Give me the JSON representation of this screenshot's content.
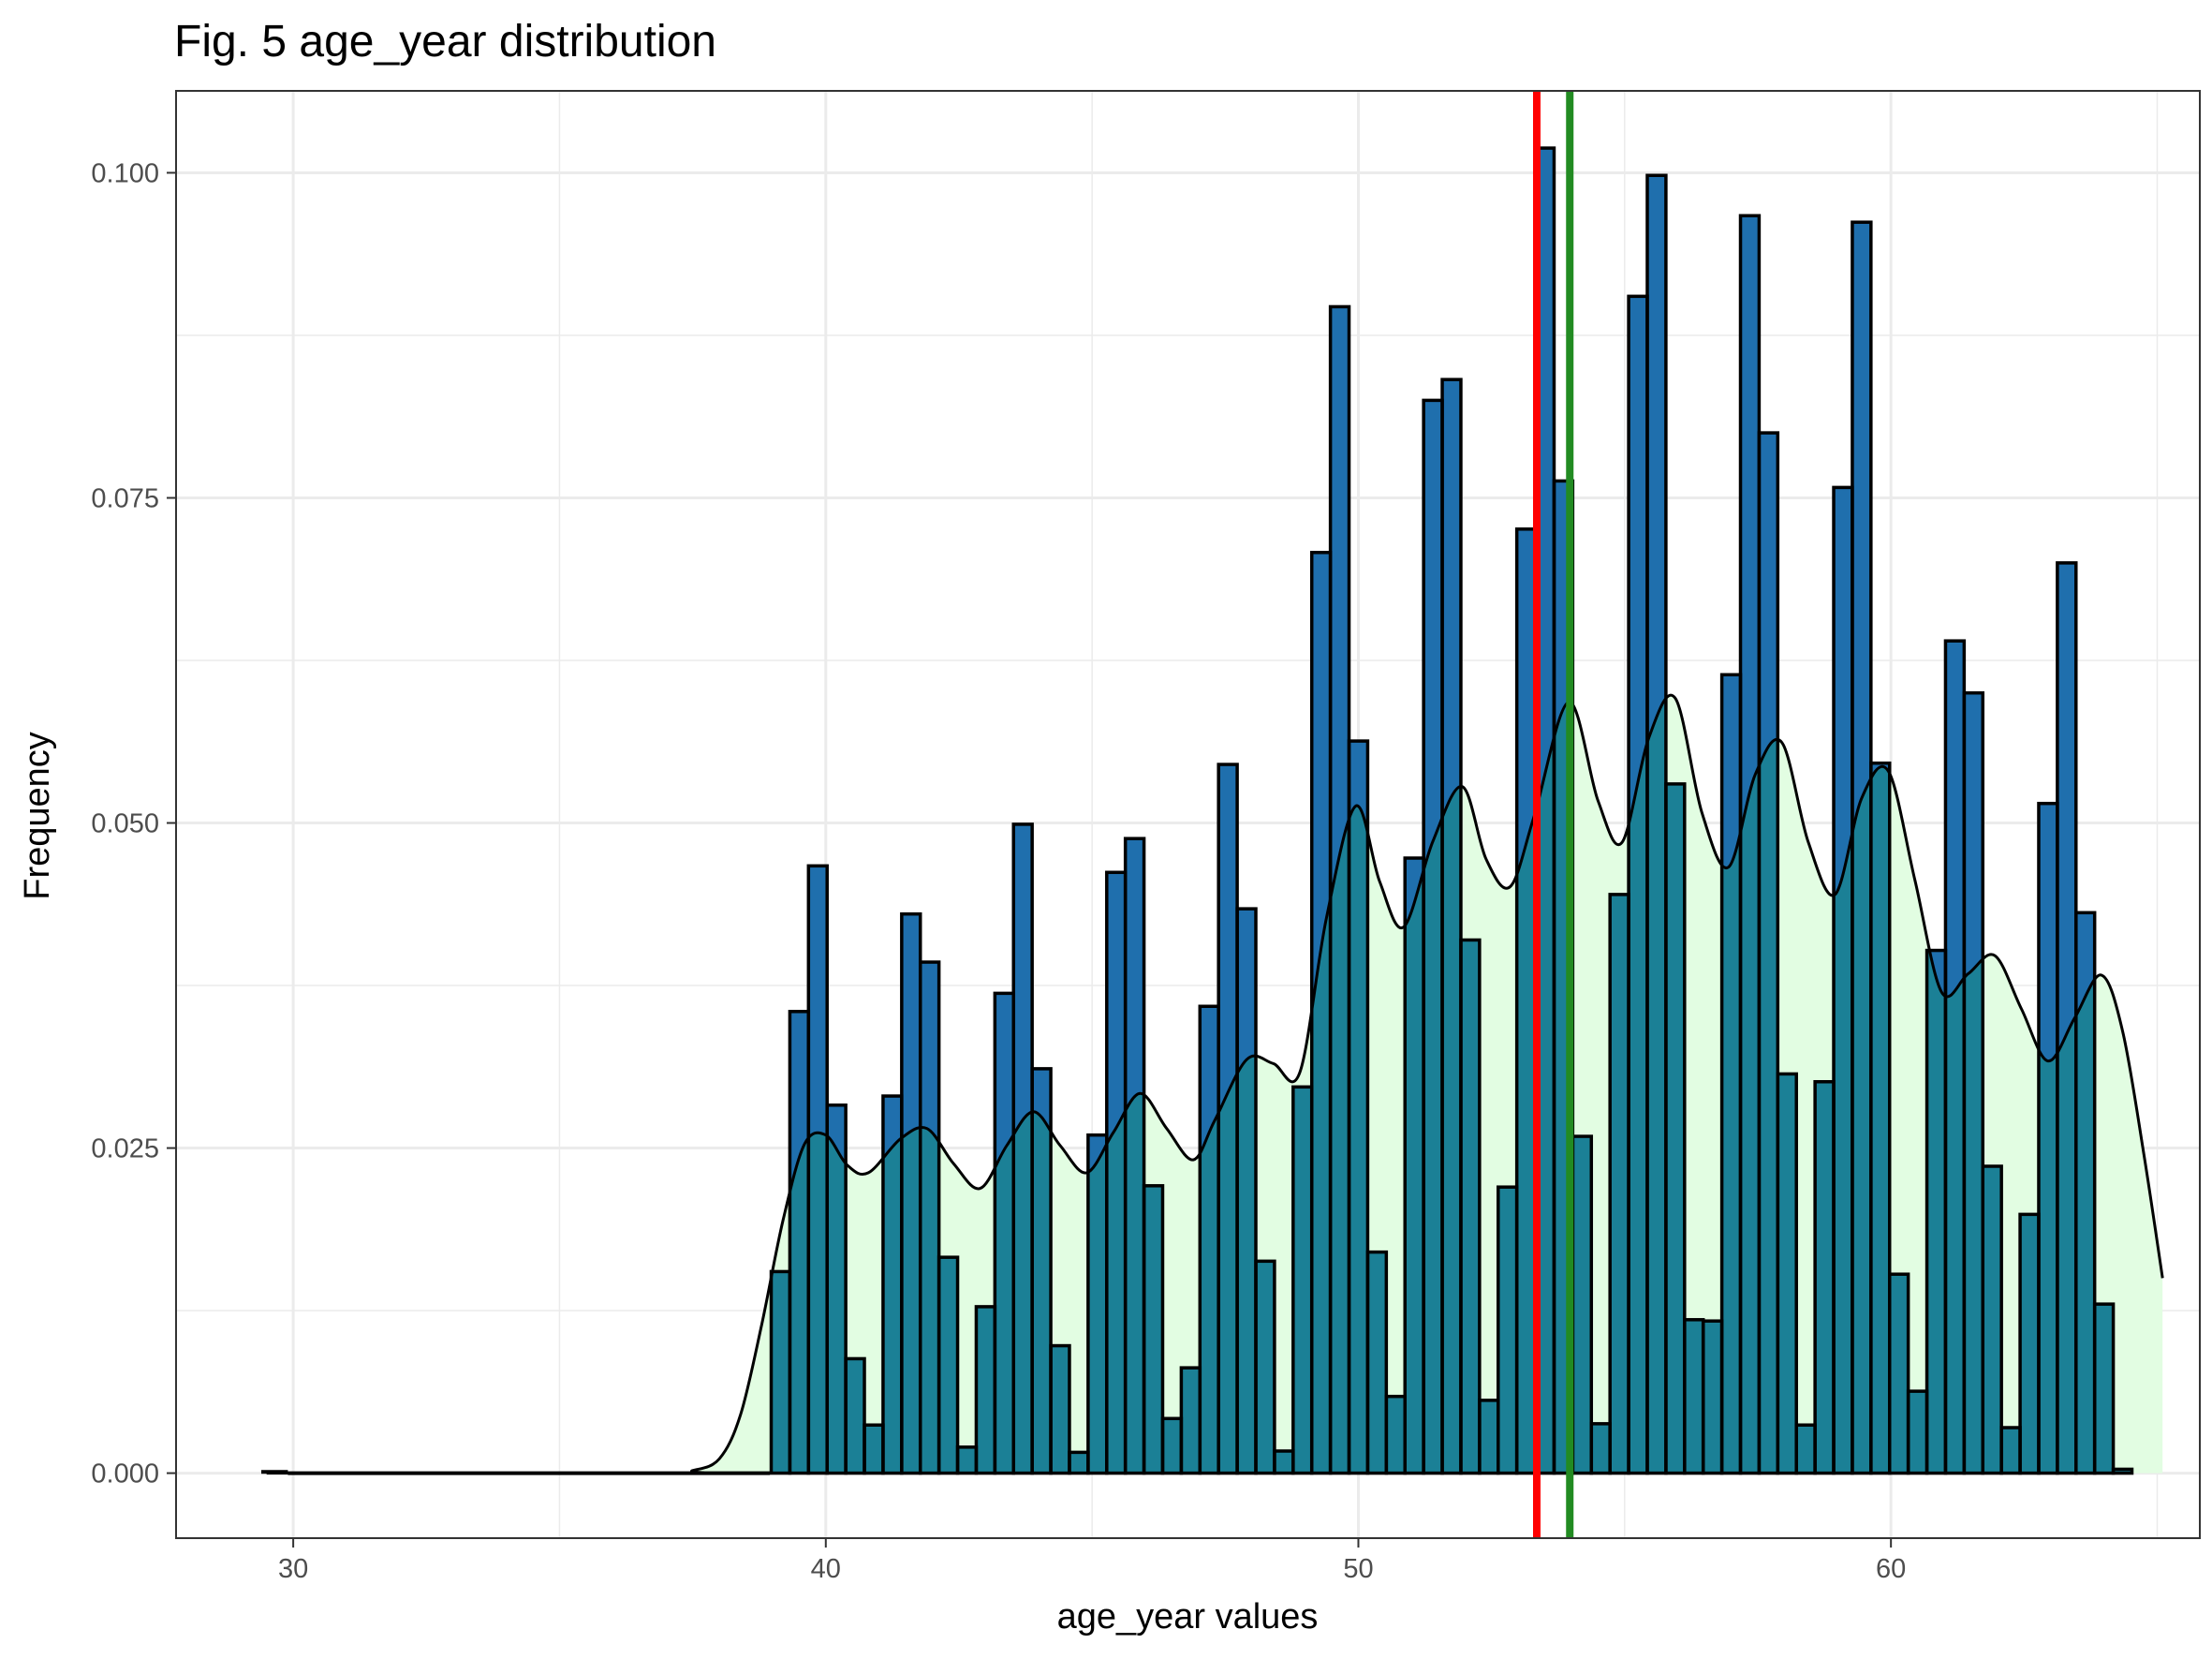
{
  "chart_data": {
    "type": "bar",
    "title": "Fig. 5 age_year distribution",
    "xlabel": "age_year values",
    "ylabel": "Frequency",
    "xlim": [
      27.8,
      65.8
    ],
    "ylim": [
      -0.005,
      0.1063
    ],
    "x_ticks": [
      30,
      40,
      50,
      60
    ],
    "y_ticks": [
      0.0,
      0.025,
      0.05,
      0.075,
      0.1
    ],
    "x_tick_labels": [
      "30",
      "40",
      "50",
      "60"
    ],
    "y_tick_labels": [
      "0.000",
      "0.025",
      "0.050",
      "0.075",
      "0.100"
    ],
    "grid": true,
    "bin_width": 0.35,
    "series": [
      {
        "kind": "histogram",
        "color": "#1f6fad",
        "bins": [
          {
            "x": 39.15,
            "y": 0.0155
          },
          {
            "x": 39.5,
            "y": 0.0355
          },
          {
            "x": 39.85,
            "y": 0.0467
          },
          {
            "x": 40.2,
            "y": 0.0283
          },
          {
            "x": 40.55,
            "y": 0.0088
          },
          {
            "x": 40.9,
            "y": 0.0037
          },
          {
            "x": 41.25,
            "y": 0.029
          },
          {
            "x": 41.6,
            "y": 0.043
          },
          {
            "x": 41.95,
            "y": 0.0393
          },
          {
            "x": 42.3,
            "y": 0.0166
          },
          {
            "x": 42.65,
            "y": 0.002
          },
          {
            "x": 43.0,
            "y": 0.0128
          },
          {
            "x": 43.35,
            "y": 0.0369
          },
          {
            "x": 43.7,
            "y": 0.0499
          },
          {
            "x": 44.05,
            "y": 0.0311
          },
          {
            "x": 44.4,
            "y": 0.0098
          },
          {
            "x": 44.75,
            "y": 0.0016
          },
          {
            "x": 45.1,
            "y": 0.026
          },
          {
            "x": 45.45,
            "y": 0.0462
          },
          {
            "x": 45.8,
            "y": 0.0488
          },
          {
            "x": 46.15,
            "y": 0.0221
          },
          {
            "x": 46.5,
            "y": 0.0042
          },
          {
            "x": 46.85,
            "y": 0.0081
          },
          {
            "x": 47.2,
            "y": 0.0359
          },
          {
            "x": 47.55,
            "y": 0.0545
          },
          {
            "x": 47.9,
            "y": 0.0434
          },
          {
            "x": 48.25,
            "y": 0.0163
          },
          {
            "x": 48.6,
            "y": 0.0017
          },
          {
            "x": 48.95,
            "y": 0.0297
          },
          {
            "x": 49.3,
            "y": 0.0708
          },
          {
            "x": 49.65,
            "y": 0.0897
          },
          {
            "x": 50.0,
            "y": 0.0563
          },
          {
            "x": 50.35,
            "y": 0.017
          },
          {
            "x": 50.7,
            "y": 0.0059
          },
          {
            "x": 51.05,
            "y": 0.0473
          },
          {
            "x": 51.4,
            "y": 0.0825
          },
          {
            "x": 51.75,
            "y": 0.0841
          },
          {
            "x": 52.1,
            "y": 0.041
          },
          {
            "x": 52.45,
            "y": 0.0056
          },
          {
            "x": 52.8,
            "y": 0.022
          },
          {
            "x": 53.15,
            "y": 0.0726
          },
          {
            "x": 53.5,
            "y": 0.1019
          },
          {
            "x": 53.85,
            "y": 0.0763
          },
          {
            "x": 54.2,
            "y": 0.0259
          },
          {
            "x": 54.55,
            "y": 0.0038
          },
          {
            "x": 54.9,
            "y": 0.0445
          },
          {
            "x": 55.25,
            "y": 0.0905
          },
          {
            "x": 55.6,
            "y": 0.0998
          },
          {
            "x": 55.95,
            "y": 0.053
          },
          {
            "x": 56.3,
            "y": 0.0118
          },
          {
            "x": 56.65,
            "y": 0.0117
          },
          {
            "x": 57.0,
            "y": 0.0614
          },
          {
            "x": 57.35,
            "y": 0.0967
          },
          {
            "x": 57.7,
            "y": 0.08
          },
          {
            "x": 58.05,
            "y": 0.0307
          },
          {
            "x": 58.4,
            "y": 0.0037
          },
          {
            "x": 58.75,
            "y": 0.0301
          },
          {
            "x": 59.1,
            "y": 0.0758
          },
          {
            "x": 59.45,
            "y": 0.0962
          },
          {
            "x": 59.8,
            "y": 0.0546
          },
          {
            "x": 60.15,
            "y": 0.0153
          },
          {
            "x": 60.5,
            "y": 0.0063
          },
          {
            "x": 60.85,
            "y": 0.0402
          },
          {
            "x": 61.2,
            "y": 0.064
          },
          {
            "x": 61.55,
            "y": 0.06
          },
          {
            "x": 61.9,
            "y": 0.0236
          },
          {
            "x": 62.25,
            "y": 0.0035
          },
          {
            "x": 62.6,
            "y": 0.0199
          },
          {
            "x": 62.95,
            "y": 0.0515
          },
          {
            "x": 63.3,
            "y": 0.07
          },
          {
            "x": 63.65,
            "y": 0.0431
          },
          {
            "x": 64.0,
            "y": 0.013
          },
          {
            "x": 64.35,
            "y": 0.0003
          }
        ],
        "flat_segments": [
          {
            "x_start": 29.4,
            "x_end": 29.9,
            "y": 0.0001
          },
          {
            "x_start": 29.9,
            "x_end": 38.95,
            "y": 0.0
          }
        ]
      },
      {
        "kind": "density",
        "line_color": "#000000",
        "fill_color": "#e2fde2",
        "points": [
          {
            "x": 29.5,
            "y": 0.0
          },
          {
            "x": 37.0,
            "y": 0.0
          },
          {
            "x": 37.5,
            "y": 0.0002
          },
          {
            "x": 38.0,
            "y": 0.0011
          },
          {
            "x": 38.4,
            "y": 0.0045
          },
          {
            "x": 38.8,
            "y": 0.0115
          },
          {
            "x": 39.2,
            "y": 0.0195
          },
          {
            "x": 39.6,
            "y": 0.0253
          },
          {
            "x": 40.0,
            "y": 0.026
          },
          {
            "x": 40.4,
            "y": 0.0237
          },
          {
            "x": 40.8,
            "y": 0.0231
          },
          {
            "x": 41.4,
            "y": 0.0257
          },
          {
            "x": 41.9,
            "y": 0.0265
          },
          {
            "x": 42.4,
            "y": 0.0238
          },
          {
            "x": 42.9,
            "y": 0.0219
          },
          {
            "x": 43.4,
            "y": 0.0252
          },
          {
            "x": 43.9,
            "y": 0.0278
          },
          {
            "x": 44.4,
            "y": 0.0252
          },
          {
            "x": 44.9,
            "y": 0.0231
          },
          {
            "x": 45.4,
            "y": 0.0262
          },
          {
            "x": 45.9,
            "y": 0.0292
          },
          {
            "x": 46.4,
            "y": 0.0265
          },
          {
            "x": 46.9,
            "y": 0.0241
          },
          {
            "x": 47.3,
            "y": 0.0271
          },
          {
            "x": 47.9,
            "y": 0.0318
          },
          {
            "x": 48.4,
            "y": 0.0315
          },
          {
            "x": 48.9,
            "y": 0.0308
          },
          {
            "x": 49.4,
            "y": 0.0427
          },
          {
            "x": 49.95,
            "y": 0.0513
          },
          {
            "x": 50.4,
            "y": 0.0455
          },
          {
            "x": 50.85,
            "y": 0.042
          },
          {
            "x": 51.4,
            "y": 0.0486
          },
          {
            "x": 51.95,
            "y": 0.0528
          },
          {
            "x": 52.4,
            "y": 0.0472
          },
          {
            "x": 52.85,
            "y": 0.0451
          },
          {
            "x": 53.3,
            "y": 0.0505
          },
          {
            "x": 53.95,
            "y": 0.0593
          },
          {
            "x": 54.5,
            "y": 0.0517
          },
          {
            "x": 54.95,
            "y": 0.0485
          },
          {
            "x": 55.45,
            "y": 0.0565
          },
          {
            "x": 55.95,
            "y": 0.0596
          },
          {
            "x": 56.45,
            "y": 0.0508
          },
          {
            "x": 56.95,
            "y": 0.0466
          },
          {
            "x": 57.45,
            "y": 0.0537
          },
          {
            "x": 57.95,
            "y": 0.0562
          },
          {
            "x": 58.45,
            "y": 0.0485
          },
          {
            "x": 58.95,
            "y": 0.0445
          },
          {
            "x": 59.45,
            "y": 0.0519
          },
          {
            "x": 59.95,
            "y": 0.054
          },
          {
            "x": 60.45,
            "y": 0.0456
          },
          {
            "x": 60.95,
            "y": 0.037
          },
          {
            "x": 61.45,
            "y": 0.0384
          },
          {
            "x": 61.95,
            "y": 0.0398
          },
          {
            "x": 62.45,
            "y": 0.0357
          },
          {
            "x": 62.95,
            "y": 0.0317
          },
          {
            "x": 63.45,
            "y": 0.035
          },
          {
            "x": 63.95,
            "y": 0.0383
          },
          {
            "x": 64.35,
            "y": 0.034
          },
          {
            "x": 64.75,
            "y": 0.0245
          },
          {
            "x": 65.1,
            "y": 0.015
          }
        ]
      },
      {
        "kind": "overlap",
        "color": "#1b8096",
        "description_from_picture": "region where histogram bars lie under the density fill"
      }
    ],
    "reference_lines": [
      {
        "orientation": "vertical",
        "x": 53.35,
        "color": "#ff0000"
      },
      {
        "orientation": "vertical",
        "x": 53.97,
        "color": "#228b22"
      }
    ]
  }
}
